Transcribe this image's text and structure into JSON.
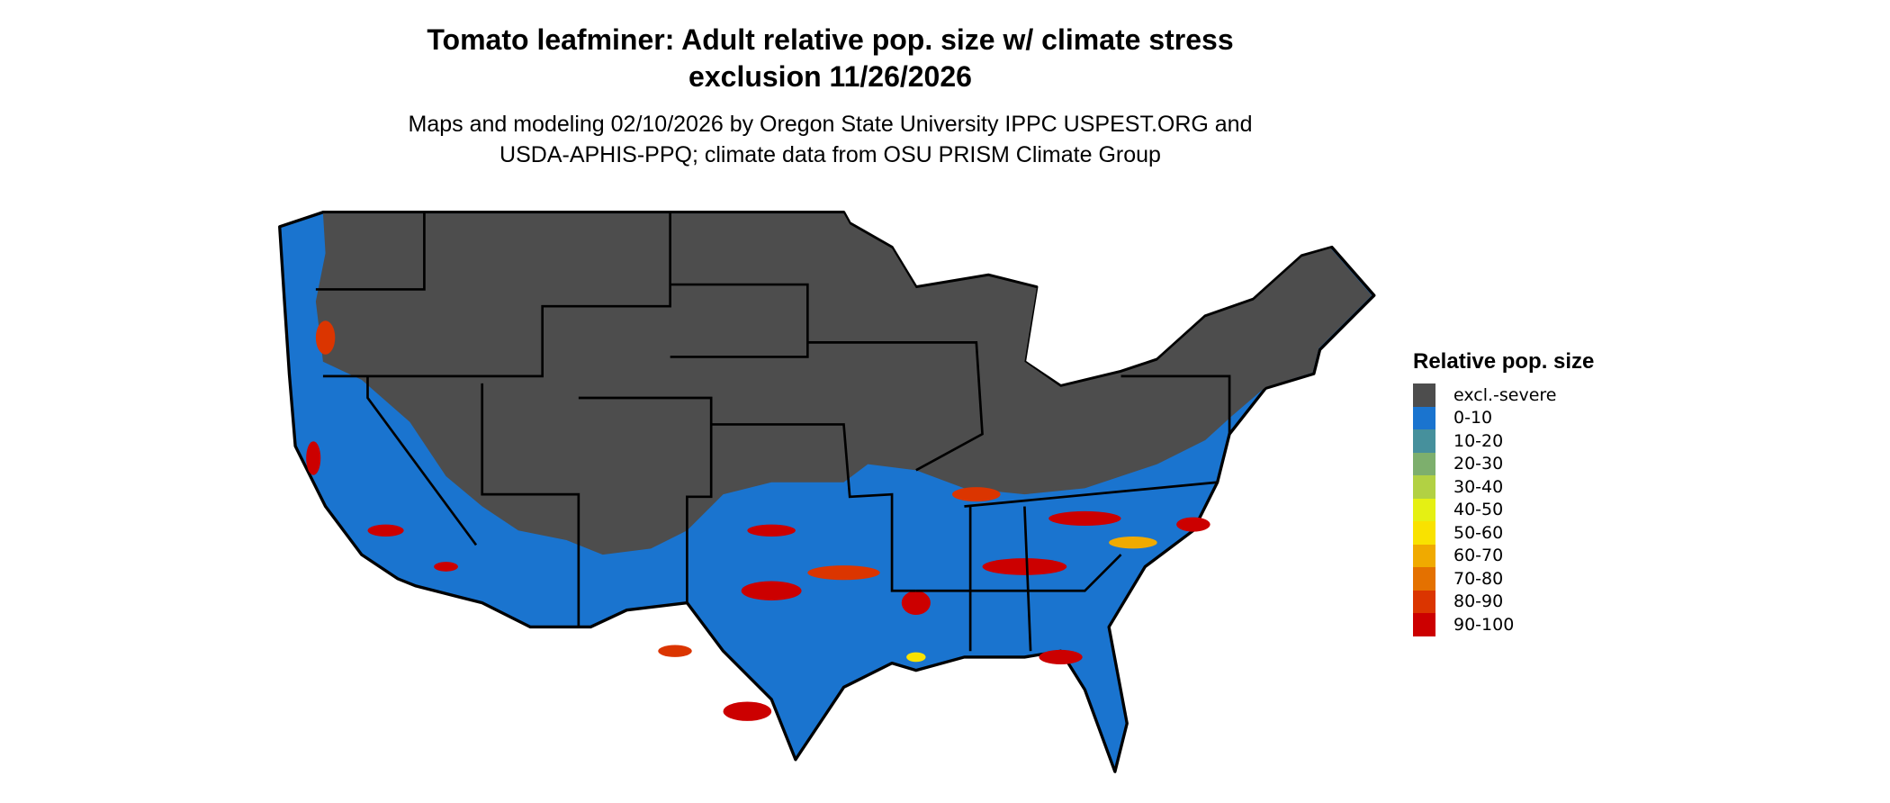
{
  "title": {
    "line1": "Tomato leafminer: Adult relative pop. size w/ climate stress",
    "line2": "exclusion 11/26/2026"
  },
  "subtitle": {
    "line1": "Maps and modeling 02/10/2026 by Oregon State University IPPC USPEST.ORG and",
    "line2": "USDA-APHIS-PPQ; climate data from OSU PRISM Climate Group"
  },
  "legend": {
    "title": "Relative pop. size",
    "items": [
      {
        "label": "excl.-severe",
        "color": "#4d4d4d"
      },
      {
        "label": "0-10",
        "color": "#1a74cf"
      },
      {
        "label": "10-20",
        "color": "#46909c"
      },
      {
        "label": "20-30",
        "color": "#7daf6d"
      },
      {
        "label": "30-40",
        "color": "#b2d143"
      },
      {
        "label": "40-50",
        "color": "#e5f013"
      },
      {
        "label": "50-60",
        "color": "#f9e200"
      },
      {
        "label": "60-70",
        "color": "#f0aa00"
      },
      {
        "label": "70-80",
        "color": "#e47100"
      },
      {
        "label": "80-90",
        "color": "#db3500"
      },
      {
        "label": "90-100",
        "color": "#cc0000"
      }
    ]
  }
}
